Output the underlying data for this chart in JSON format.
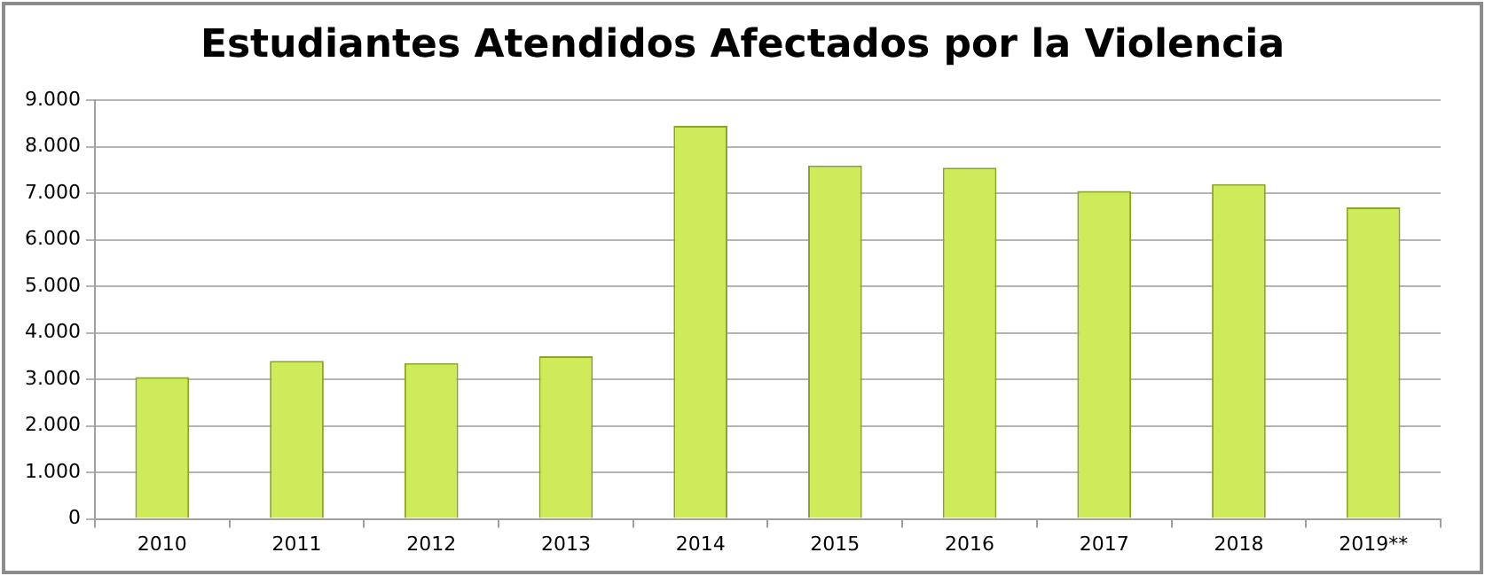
{
  "chart_data": {
    "type": "bar",
    "title": "Estudiantes Atendidos Afectados por la Violencia",
    "categories": [
      "2010",
      "2011",
      "2012",
      "2013",
      "2014",
      "2015",
      "2016",
      "2017",
      "2018",
      "2019**"
    ],
    "values": [
      3050,
      3400,
      3350,
      3500,
      8450,
      7600,
      7550,
      7050,
      7200,
      6700
    ],
    "color": "#cfeb5a",
    "ylim": [
      0,
      9000
    ],
    "yticks": [
      0,
      {
        "value": 1000,
        "label": "1.000"
      },
      {
        "value": 2000,
        "label": "2.000"
      },
      {
        "value": 3000,
        "label": "3.000"
      },
      {
        "value": 4000,
        "label": "4.000"
      },
      {
        "value": 5000,
        "label": "5.000"
      },
      {
        "value": 6000,
        "label": "6.000"
      },
      {
        "value": 7000,
        "label": "7.000"
      },
      {
        "value": 8000,
        "label": "8.000"
      },
      {
        "value": 9000,
        "label": "9.000"
      }
    ],
    "grid": "y",
    "legend": false
  }
}
